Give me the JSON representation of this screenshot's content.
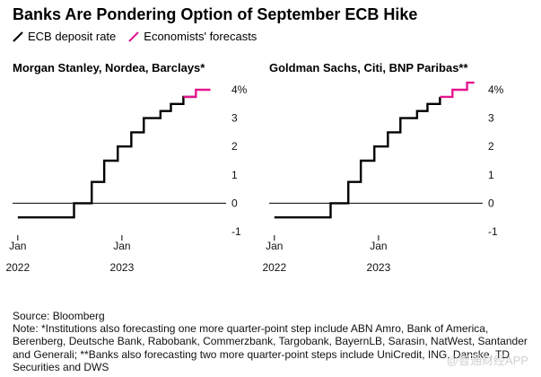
{
  "title": "Banks Are Pondering Option of September ECB Hike",
  "legend": [
    {
      "label": "ECB deposit rate",
      "color": "#000000"
    },
    {
      "label": "Economists' forecasts",
      "color": "#e4168c"
    }
  ],
  "source": "Source: Bloomberg",
  "note": "Note: *Institutions also forecasting one more quarter-point step include ABN Amro, Bank of America, Berenberg, Deutsche Bank, Rabobank, Commerzbank, Targobank, BayernLB, Sarasin, NatWest, Santander and Generali; **Banks also forecasting two more quarter-point steps include UniCredit, ING, Danske, TD Securities and DWS",
  "watermark": "@智通财经APP",
  "chart_data": [
    {
      "type": "line",
      "title": "Morgan Stanley, Nordea, Barclays*",
      "x_ticks": [
        {
          "x": 2022.0,
          "label": [
            "Jan",
            "2022"
          ]
        },
        {
          "x": 2023.0,
          "label": [
            "Jan",
            "2023"
          ]
        }
      ],
      "y_ticks": [
        {
          "y": 4,
          "label": "4%"
        },
        {
          "y": 3,
          "label": "3"
        },
        {
          "y": 2,
          "label": "2"
        },
        {
          "y": 1,
          "label": "1"
        },
        {
          "y": 0,
          "label": "0"
        },
        {
          "y": -1,
          "label": "-1"
        }
      ],
      "xlim": [
        2021.95,
        2024.0
      ],
      "ylim": [
        -1.0,
        4.0
      ],
      "series": [
        {
          "name": "ECB deposit rate",
          "color": "#000000",
          "step": true,
          "x": [
            2022.0,
            2022.54,
            2022.71,
            2022.83,
            2022.96,
            2023.09,
            2023.21,
            2023.37,
            2023.47,
            2023.59,
            2023.71
          ],
          "y": [
            -0.5,
            0.0,
            0.75,
            1.5,
            2.0,
            2.5,
            3.0,
            3.25,
            3.5,
            3.75,
            3.75
          ]
        },
        {
          "name": "Economists' forecasts",
          "color": "#e4168c",
          "step": true,
          "x": [
            2023.59,
            2023.71,
            2023.85
          ],
          "y": [
            3.75,
            4.0,
            4.0
          ]
        }
      ]
    },
    {
      "type": "line",
      "title": "Goldman Sachs, Citi, BNP Paribas**",
      "x_ticks": [
        {
          "x": 2022.0,
          "label": [
            "Jan",
            "2022"
          ]
        },
        {
          "x": 2023.0,
          "label": [
            "Jan",
            "2023"
          ]
        }
      ],
      "y_ticks": [
        {
          "y": 4,
          "label": "4%"
        },
        {
          "y": 3,
          "label": "3"
        },
        {
          "y": 2,
          "label": "2"
        },
        {
          "y": 1,
          "label": "1"
        },
        {
          "y": 0,
          "label": "0"
        },
        {
          "y": -1,
          "label": "-1"
        }
      ],
      "xlim": [
        2021.95,
        2024.0
      ],
      "ylim": [
        -1.0,
        4.0
      ],
      "series": [
        {
          "name": "ECB deposit rate",
          "color": "#000000",
          "step": true,
          "x": [
            2022.0,
            2022.54,
            2022.71,
            2022.83,
            2022.96,
            2023.09,
            2023.21,
            2023.37,
            2023.47,
            2023.59
          ],
          "y": [
            -0.5,
            0.0,
            0.75,
            1.5,
            2.0,
            2.5,
            3.0,
            3.25,
            3.5,
            3.75
          ]
        },
        {
          "name": "Economists' forecasts",
          "color": "#e4168c",
          "step": true,
          "x": [
            2023.59,
            2023.71,
            2023.85,
            2023.92
          ],
          "y": [
            3.75,
            4.0,
            4.25,
            4.25
          ]
        }
      ]
    }
  ]
}
